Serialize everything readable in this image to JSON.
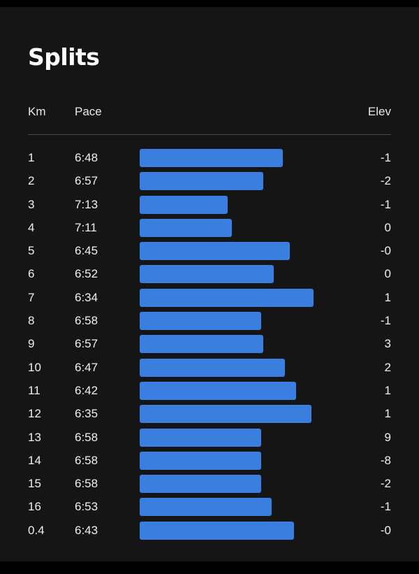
{
  "title": "Splits",
  "columns": {
    "km": "Km",
    "pace": "Pace",
    "elev": "Elev"
  },
  "colors": {
    "background": "#151515",
    "bar": "#3a7fe0",
    "text": "#ffffff"
  },
  "splits": [
    {
      "km": "1",
      "pace": "6:48",
      "elev": "-1"
    },
    {
      "km": "2",
      "pace": "6:57",
      "elev": "-2"
    },
    {
      "km": "3",
      "pace": "7:13",
      "elev": "-1"
    },
    {
      "km": "4",
      "pace": "7:11",
      "elev": "0"
    },
    {
      "km": "5",
      "pace": "6:45",
      "elev": "-0"
    },
    {
      "km": "6",
      "pace": "6:52",
      "elev": "0"
    },
    {
      "km": "7",
      "pace": "6:34",
      "elev": "1"
    },
    {
      "km": "8",
      "pace": "6:58",
      "elev": "-1"
    },
    {
      "km": "9",
      "pace": "6:57",
      "elev": "3"
    },
    {
      "km": "10",
      "pace": "6:47",
      "elev": "2"
    },
    {
      "km": "11",
      "pace": "6:42",
      "elev": "1"
    },
    {
      "km": "12",
      "pace": "6:35",
      "elev": "1"
    },
    {
      "km": "13",
      "pace": "6:58",
      "elev": "9"
    },
    {
      "km": "14",
      "pace": "6:58",
      "elev": "-8"
    },
    {
      "km": "15",
      "pace": "6:58",
      "elev": "-2"
    },
    {
      "km": "16",
      "pace": "6:53",
      "elev": "-1"
    },
    {
      "km": "0.4",
      "pace": "6:43",
      "elev": "-0"
    }
  ]
}
